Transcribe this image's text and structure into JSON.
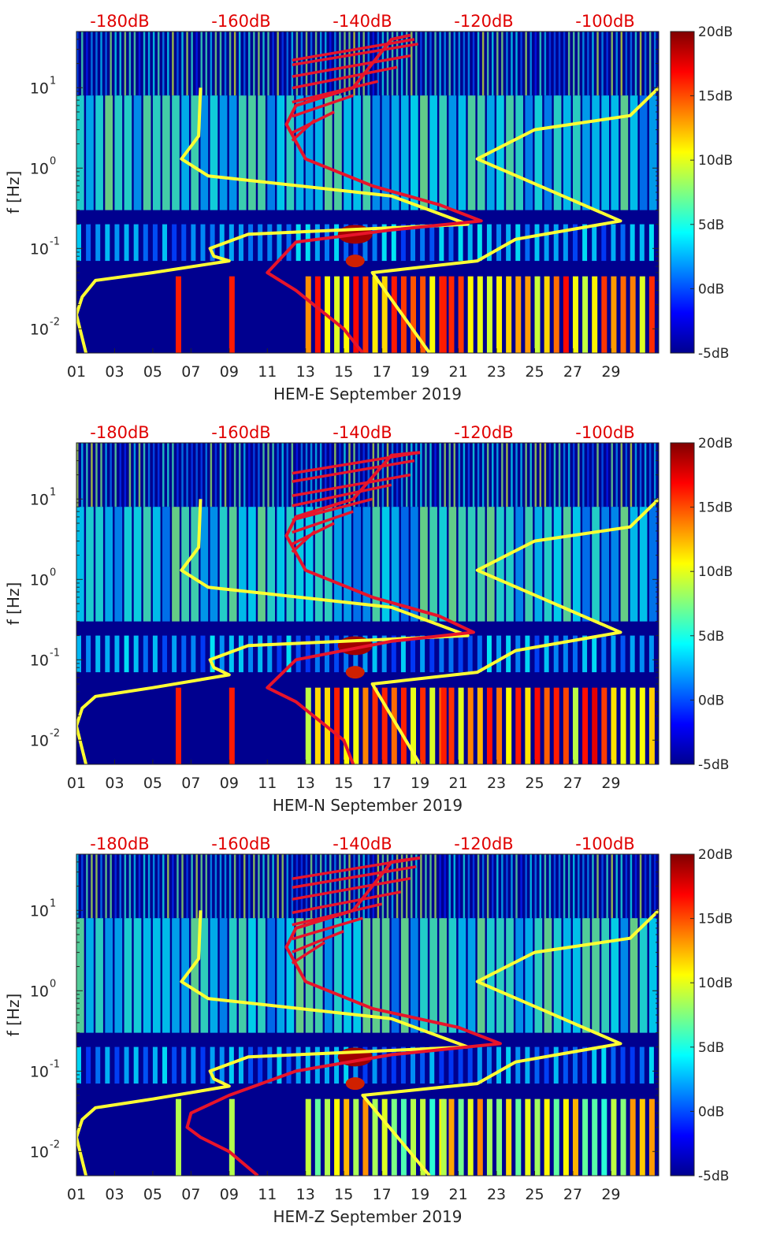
{
  "chart_data": [
    {
      "type": "heatmap",
      "xlabel": "HEM-E September 2019",
      "ylabel": "f [Hz]",
      "x_tick_labels": [
        "01",
        "03",
        "05",
        "07",
        "09",
        "11",
        "13",
        "15",
        "17",
        "19",
        "21",
        "23",
        "25",
        "27",
        "29"
      ],
      "y_tick_labels": [
        "10-2",
        "10-1",
        "100",
        "101"
      ],
      "y_tick_bases": [
        "10",
        "10",
        "10",
        "10"
      ],
      "y_tick_exponents": [
        "-2",
        "-1",
        "0",
        "1"
      ],
      "ylim_hz": [
        0.005,
        50
      ],
      "y_scale": "log",
      "top_axis_labels": [
        "-180dB",
        "-160dB",
        "-140dB",
        "-120dB",
        "-100dB"
      ],
      "colorbar_labels": [
        "20dB",
        "15dB",
        "10dB",
        "5dB",
        "0dB",
        "-5dB"
      ],
      "colorbar_range_db": [
        -5,
        20
      ],
      "yellow_curve": [
        [
          7.5,
          10
        ],
        [
          7.4,
          2.5
        ],
        [
          6.5,
          1.3
        ],
        [
          7.9,
          0.8
        ],
        [
          17.5,
          0.45
        ],
        [
          21.5,
          0.2
        ],
        [
          10,
          0.15
        ],
        [
          8,
          0.1
        ],
        [
          8.2,
          0.08
        ],
        [
          9,
          0.07
        ],
        [
          5,
          0.05
        ],
        [
          2,
          0.04
        ],
        [
          1.3,
          0.025
        ],
        [
          1,
          0.015
        ],
        [
          1.5,
          0.005
        ]
      ],
      "yellow_curve_right": [
        [
          31.5,
          10
        ],
        [
          30,
          4.5
        ],
        [
          25,
          3
        ],
        [
          22,
          1.3
        ],
        [
          29.5,
          0.22
        ],
        [
          24,
          0.13
        ],
        [
          22,
          0.07
        ],
        [
          16.5,
          0.05
        ],
        [
          19.5,
          0.005
        ]
      ],
      "red_curve": [
        [
          18.5,
          45
        ],
        [
          17.5,
          40
        ],
        [
          15.5,
          10
        ],
        [
          12.5,
          6
        ],
        [
          12,
          3.5
        ],
        [
          13,
          1.3
        ],
        [
          16.5,
          0.6
        ],
        [
          20,
          0.35
        ],
        [
          22.2,
          0.22
        ],
        [
          17.5,
          0.17
        ],
        [
          12.5,
          0.12
        ],
        [
          11,
          0.05
        ],
        [
          12.5,
          0.03
        ],
        [
          15,
          0.01
        ],
        [
          16,
          0.005
        ]
      ],
      "red_fan_tips": [
        [
          18.7,
          40
        ],
        [
          18.9,
          35
        ],
        [
          18.5,
          25
        ],
        [
          17.8,
          18
        ],
        [
          16.8,
          12
        ],
        [
          15.5,
          8
        ],
        [
          14.5,
          5
        ],
        [
          13.5,
          4
        ]
      ]
    },
    {
      "type": "heatmap",
      "xlabel": "HEM-N September 2019",
      "ylabel": "f [Hz]",
      "x_tick_labels": [
        "01",
        "03",
        "05",
        "07",
        "09",
        "11",
        "13",
        "15",
        "17",
        "19",
        "21",
        "23",
        "25",
        "27",
        "29"
      ],
      "y_tick_labels": [
        "10-2",
        "10-1",
        "100",
        "101"
      ],
      "y_tick_bases": [
        "10",
        "10",
        "10",
        "10"
      ],
      "y_tick_exponents": [
        "-2",
        "-1",
        "0",
        "1"
      ],
      "ylim_hz": [
        0.005,
        50
      ],
      "y_scale": "log",
      "top_axis_labels": [
        "-180dB",
        "-160dB",
        "-140dB",
        "-120dB",
        "-100dB"
      ],
      "colorbar_labels": [
        "20dB",
        "15dB",
        "10dB",
        "5dB",
        "0dB",
        "-5dB"
      ],
      "colorbar_range_db": [
        -5,
        20
      ],
      "yellow_curve": [
        [
          7.5,
          10
        ],
        [
          7.4,
          2.5
        ],
        [
          6.5,
          1.3
        ],
        [
          7.9,
          0.8
        ],
        [
          17.5,
          0.45
        ],
        [
          21.5,
          0.2
        ],
        [
          10,
          0.15
        ],
        [
          8,
          0.1
        ],
        [
          8.2,
          0.08
        ],
        [
          9,
          0.065
        ],
        [
          5,
          0.045
        ],
        [
          2,
          0.035
        ],
        [
          1.3,
          0.025
        ],
        [
          1,
          0.015
        ],
        [
          1.5,
          0.005
        ]
      ],
      "yellow_curve_right": [
        [
          31.5,
          10
        ],
        [
          30,
          4.5
        ],
        [
          25,
          3
        ],
        [
          22,
          1.3
        ],
        [
          29.5,
          0.22
        ],
        [
          24,
          0.13
        ],
        [
          22,
          0.07
        ],
        [
          16.5,
          0.05
        ],
        [
          19,
          0.005
        ]
      ],
      "red_curve": [
        [
          19,
          38
        ],
        [
          17.5,
          35
        ],
        [
          15.5,
          10
        ],
        [
          12.5,
          6
        ],
        [
          12,
          3.5
        ],
        [
          13,
          1.3
        ],
        [
          16.5,
          0.6
        ],
        [
          20,
          0.35
        ],
        [
          21.8,
          0.22
        ],
        [
          17.5,
          0.17
        ],
        [
          12.5,
          0.1
        ],
        [
          11,
          0.045
        ],
        [
          12.5,
          0.03
        ],
        [
          15,
          0.01
        ],
        [
          15.5,
          0.005
        ]
      ],
      "red_fan_tips": [
        [
          19,
          38
        ],
        [
          18.7,
          30
        ],
        [
          18.5,
          20
        ],
        [
          17.5,
          15
        ],
        [
          16.5,
          10
        ],
        [
          15.5,
          7
        ],
        [
          14.5,
          5
        ],
        [
          13.5,
          4
        ]
      ]
    },
    {
      "type": "heatmap",
      "xlabel": "HEM-Z September 2019",
      "ylabel": "f [Hz]",
      "x_tick_labels": [
        "01",
        "03",
        "05",
        "07",
        "09",
        "11",
        "13",
        "15",
        "17",
        "19",
        "21",
        "23",
        "25",
        "27",
        "29"
      ],
      "y_tick_labels": [
        "10-2",
        "10-1",
        "100",
        "101"
      ],
      "y_tick_bases": [
        "10",
        "10",
        "10",
        "10"
      ],
      "y_tick_exponents": [
        "-2",
        "-1",
        "0",
        "1"
      ],
      "ylim_hz": [
        0.005,
        50
      ],
      "y_scale": "log",
      "top_axis_labels": [
        "-180dB",
        "-160dB",
        "-140dB",
        "-120dB",
        "-100dB"
      ],
      "colorbar_labels": [
        "20dB",
        "15dB",
        "10dB",
        "5dB",
        "0dB",
        "-5dB"
      ],
      "colorbar_range_db": [
        -5,
        20
      ],
      "yellow_curve": [
        [
          7.5,
          10
        ],
        [
          7.4,
          2.5
        ],
        [
          6.5,
          1.3
        ],
        [
          7.9,
          0.8
        ],
        [
          17.5,
          0.45
        ],
        [
          21.5,
          0.2
        ],
        [
          10,
          0.15
        ],
        [
          8,
          0.1
        ],
        [
          8.2,
          0.08
        ],
        [
          9,
          0.065
        ],
        [
          5,
          0.045
        ],
        [
          2,
          0.035
        ],
        [
          1.3,
          0.025
        ],
        [
          1,
          0.015
        ],
        [
          1.5,
          0.005
        ]
      ],
      "yellow_curve_right": [
        [
          31.5,
          10
        ],
        [
          30,
          4.5
        ],
        [
          25,
          3
        ],
        [
          22,
          1.3
        ],
        [
          29.5,
          0.22
        ],
        [
          24,
          0.13
        ],
        [
          22,
          0.07
        ],
        [
          16,
          0.05
        ],
        [
          19.5,
          0.005
        ]
      ],
      "red_curve": [
        [
          19,
          45
        ],
        [
          17.5,
          40
        ],
        [
          15.5,
          10
        ],
        [
          12.5,
          6
        ],
        [
          12,
          3.5
        ],
        [
          13,
          1.3
        ],
        [
          16.5,
          0.6
        ],
        [
          21,
          0.35
        ],
        [
          23.2,
          0.22
        ],
        [
          17.5,
          0.16
        ],
        [
          12.5,
          0.1
        ],
        [
          9,
          0.05
        ],
        [
          7,
          0.03
        ],
        [
          6.8,
          0.02
        ],
        [
          7.5,
          0.015
        ],
        [
          9,
          0.01
        ],
        [
          10.5,
          0.005
        ]
      ],
      "red_fan_tips": [
        [
          19,
          45
        ],
        [
          18.8,
          35
        ],
        [
          18.5,
          25
        ],
        [
          18,
          17
        ],
        [
          17,
          12
        ],
        [
          16,
          8
        ],
        [
          15,
          5.5
        ],
        [
          14,
          4
        ]
      ]
    }
  ],
  "colors": {
    "colorbar_stops": [
      "#00008f",
      "#0000ff",
      "#0080ff",
      "#00ffff",
      "#80ff80",
      "#ffff00",
      "#ff8000",
      "#ff0000",
      "#800000"
    ],
    "panel_background": "#00008f",
    "yellow_line": "#ffff33",
    "red_line": "#e8142a",
    "db_label": "#e00000"
  }
}
